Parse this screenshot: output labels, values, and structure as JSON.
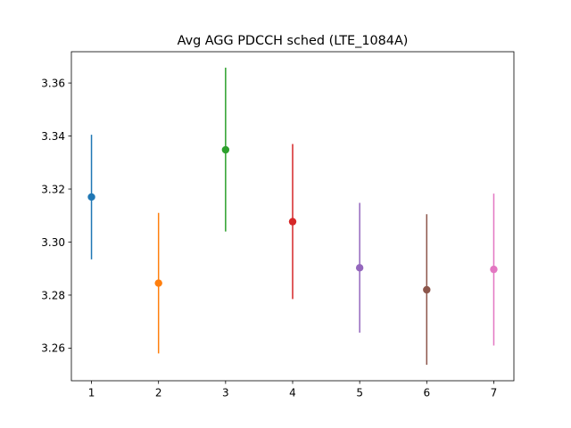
{
  "chart_data": {
    "type": "errorbar",
    "title": "Avg AGG PDCCH sched (LTE_1084A)",
    "xlabel": "",
    "ylabel": "",
    "xlim": [
      0.7,
      7.3
    ],
    "ylim": [
      3.2477,
      3.3718
    ],
    "xticks": [
      1,
      2,
      3,
      4,
      5,
      6,
      7
    ],
    "yticks": [
      3.26,
      3.28,
      3.3,
      3.32,
      3.34,
      3.36
    ],
    "ytick_labels": [
      "3.26",
      "3.28",
      "3.30",
      "3.32",
      "3.34",
      "3.36"
    ],
    "grid": false,
    "series": [
      {
        "x": 1,
        "y": 3.317,
        "ylow": 3.2935,
        "yhigh": 3.3405,
        "color": "#1f77b4"
      },
      {
        "x": 2,
        "y": 3.2845,
        "ylow": 3.258,
        "yhigh": 3.311,
        "color": "#ff7f0e"
      },
      {
        "x": 3,
        "y": 3.3348,
        "ylow": 3.304,
        "yhigh": 3.3658,
        "color": "#2ca02c"
      },
      {
        "x": 4,
        "y": 3.3077,
        "ylow": 3.2785,
        "yhigh": 3.337,
        "color": "#d62728"
      },
      {
        "x": 5,
        "y": 3.2903,
        "ylow": 3.2658,
        "yhigh": 3.3148,
        "color": "#9467bd"
      },
      {
        "x": 6,
        "y": 3.282,
        "ylow": 3.2537,
        "yhigh": 3.3105,
        "color": "#8c564b"
      },
      {
        "x": 7,
        "y": 3.2897,
        "ylow": 3.261,
        "yhigh": 3.3183,
        "color": "#e377c2"
      }
    ]
  }
}
